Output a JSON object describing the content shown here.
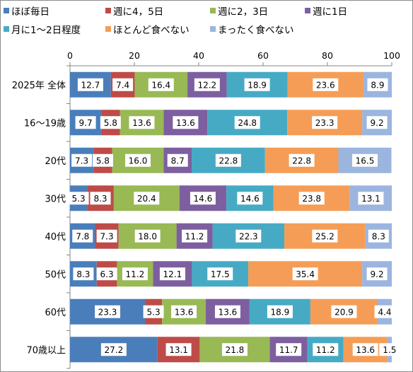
{
  "chart_data": {
    "type": "bar",
    "orientation": "horizontal",
    "stacked": "100%",
    "categories": [
      "2025年 全体",
      "16～19歳",
      "20代",
      "30代",
      "40代",
      "50代",
      "60代",
      "70歳以上"
    ],
    "xlim": [
      0,
      100
    ],
    "xticks": [
      "0",
      "20",
      "40",
      "60",
      "80",
      "100"
    ],
    "legend_position": "top",
    "grid": false,
    "series": [
      {
        "name": "ほぼ毎日",
        "color": "#4a7ebb",
        "values": [
          12.7,
          9.7,
          7.3,
          5.3,
          7.8,
          8.3,
          23.3,
          27.2
        ]
      },
      {
        "name": "週に4，5日",
        "color": "#be4b48",
        "values": [
          7.4,
          5.8,
          5.8,
          8.3,
          7.3,
          6.3,
          5.3,
          13.1
        ]
      },
      {
        "name": "週に2，3日",
        "color": "#98b954",
        "values": [
          16.4,
          13.6,
          16.0,
          20.4,
          18.0,
          11.2,
          13.6,
          21.8
        ]
      },
      {
        "name": "週に1日",
        "color": "#7d5fa0",
        "values": [
          12.2,
          13.6,
          8.7,
          14.6,
          11.2,
          12.1,
          13.6,
          11.7
        ]
      },
      {
        "name": "月に1～2日程度",
        "color": "#46aac5",
        "values": [
          18.9,
          24.8,
          22.8,
          14.6,
          22.3,
          17.5,
          18.9,
          11.2
        ]
      },
      {
        "name": "ほとんど食べない",
        "color": "#f59d56",
        "values": [
          23.6,
          23.3,
          22.8,
          23.8,
          25.2,
          35.4,
          20.9,
          13.6
        ]
      },
      {
        "name": "まったく食べない",
        "color": "#9bb5df",
        "values": [
          8.9,
          9.2,
          16.5,
          13.1,
          8.3,
          9.2,
          4.4,
          1.5
        ]
      }
    ]
  }
}
